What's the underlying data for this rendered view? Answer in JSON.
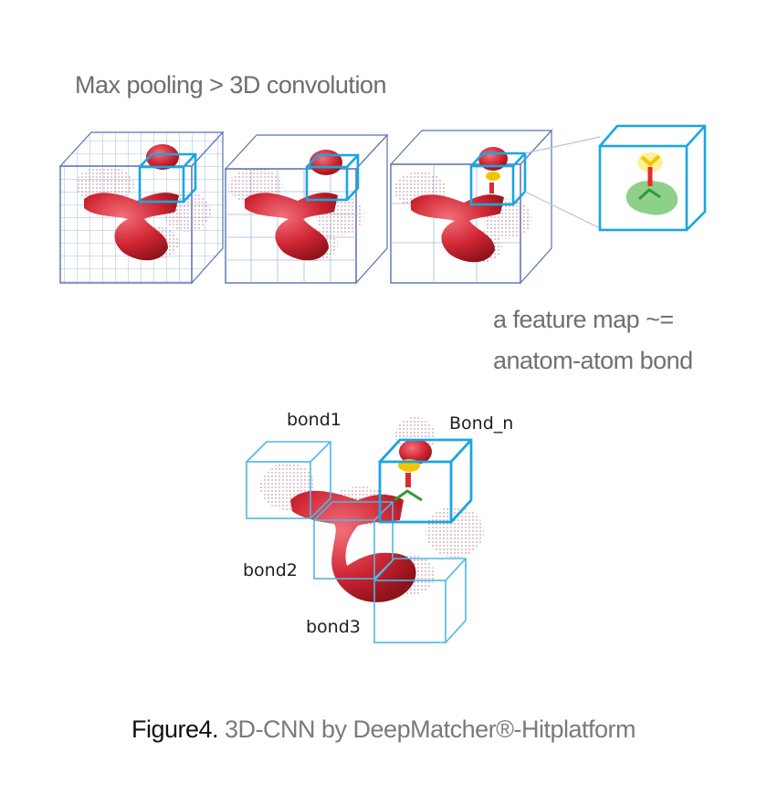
{
  "heading": "Max pooling > 3D convolution",
  "feature_map": {
    "line1": "a feature map  ~=",
    "line2": "anatom-atom bond"
  },
  "bond_labels": {
    "bond1": "bond1",
    "bond_n": "Bond_n",
    "bond2": "bond2",
    "bond3": "bond3"
  },
  "caption": {
    "lead": "Figure4.",
    "rest": " 3D-CNN by DeepMatcher®-Hitplatform"
  },
  "colors": {
    "grid": "#5872b5",
    "highlight": "#1aa6e0",
    "molecule": "#d92b35",
    "ligand_green": "#6fbf6a",
    "ligand_yellow": "#f5c400"
  }
}
